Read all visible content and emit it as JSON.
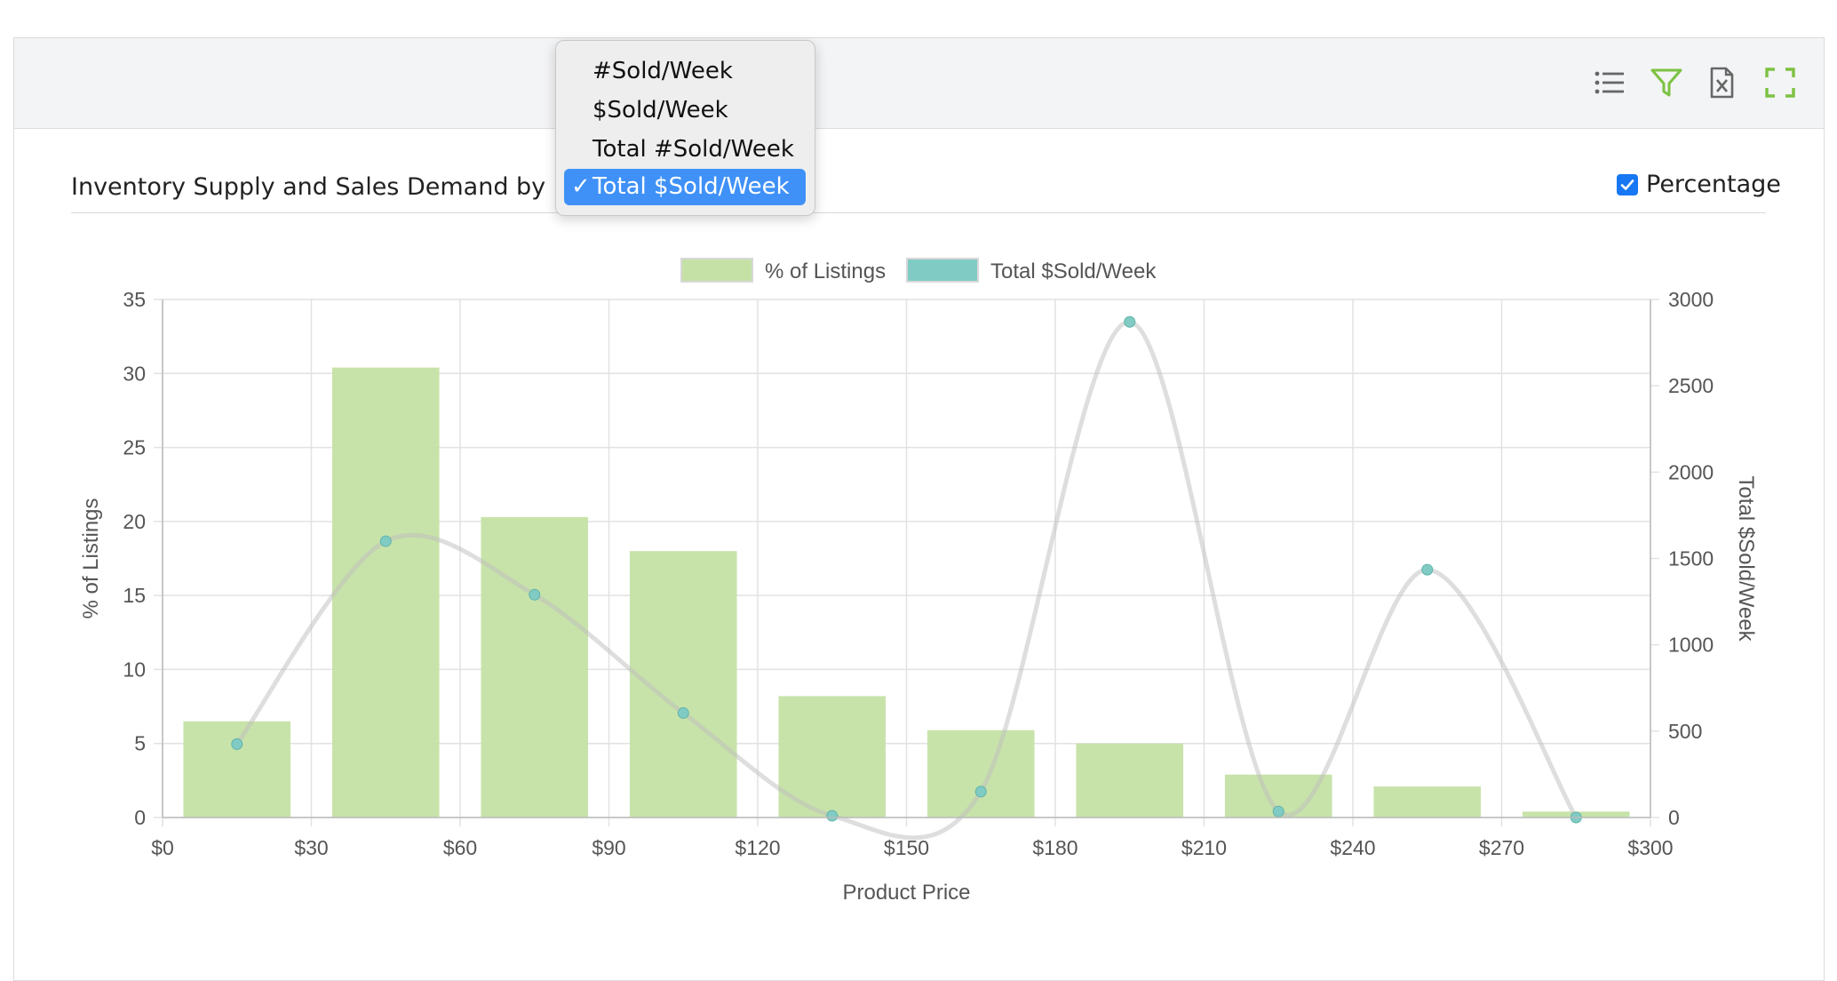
{
  "panel": {
    "title": "Inventory Supply and Sales Demand by Price",
    "percentage_label": "Percentage",
    "percentage_checked": true,
    "toolbar": [
      "list-icon",
      "filter-icon",
      "excel-export-icon",
      "fullscreen-icon"
    ],
    "accent_color": "#7cc242"
  },
  "metric_dropdown": {
    "options": [
      "#Sold/Week",
      "$Sold/Week",
      "Total #Sold/Week",
      "Total $Sold/Week"
    ],
    "selected_index": 3,
    "check_mark": "✓"
  },
  "chart_data": {
    "type": "bar",
    "legend": [
      "% of Listings",
      "Total $Sold/Week"
    ],
    "legend_placement": "top-center",
    "xlabel": "Product Price",
    "ylabel": "% of Listings",
    "y2label": "Total $Sold/Week",
    "x_ticks": [
      "$0",
      "$30",
      "$60",
      "$90",
      "$120",
      "$150",
      "$180",
      "$210",
      "$240",
      "$270",
      "$300"
    ],
    "y_ticks": [
      "0",
      "5",
      "10",
      "15",
      "20",
      "25",
      "30",
      "35"
    ],
    "y2_ticks": [
      "0",
      "500",
      "1000",
      "1500",
      "2000",
      "2500",
      "3000"
    ],
    "xlim": [
      0,
      300
    ],
    "ylim": [
      0,
      35
    ],
    "y2lim": [
      0,
      3000
    ],
    "grid": true,
    "bar_centers": [
      15,
      45,
      75,
      105,
      135,
      165,
      195,
      225,
      255,
      285
    ],
    "series": [
      {
        "name": "% of Listings",
        "type": "bar",
        "axis": "left",
        "color": "#c5e1a5",
        "values": [
          6.5,
          30.4,
          20.3,
          18.0,
          8.2,
          5.9,
          5.0,
          2.9,
          2.1,
          0.4
        ]
      },
      {
        "name": "Total $Sold/Week",
        "type": "line",
        "axis": "right",
        "color": "#80cbc4",
        "values": [
          425,
          1600,
          1290,
          605,
          10,
          150,
          2870,
          35,
          1435,
          0
        ]
      }
    ]
  }
}
